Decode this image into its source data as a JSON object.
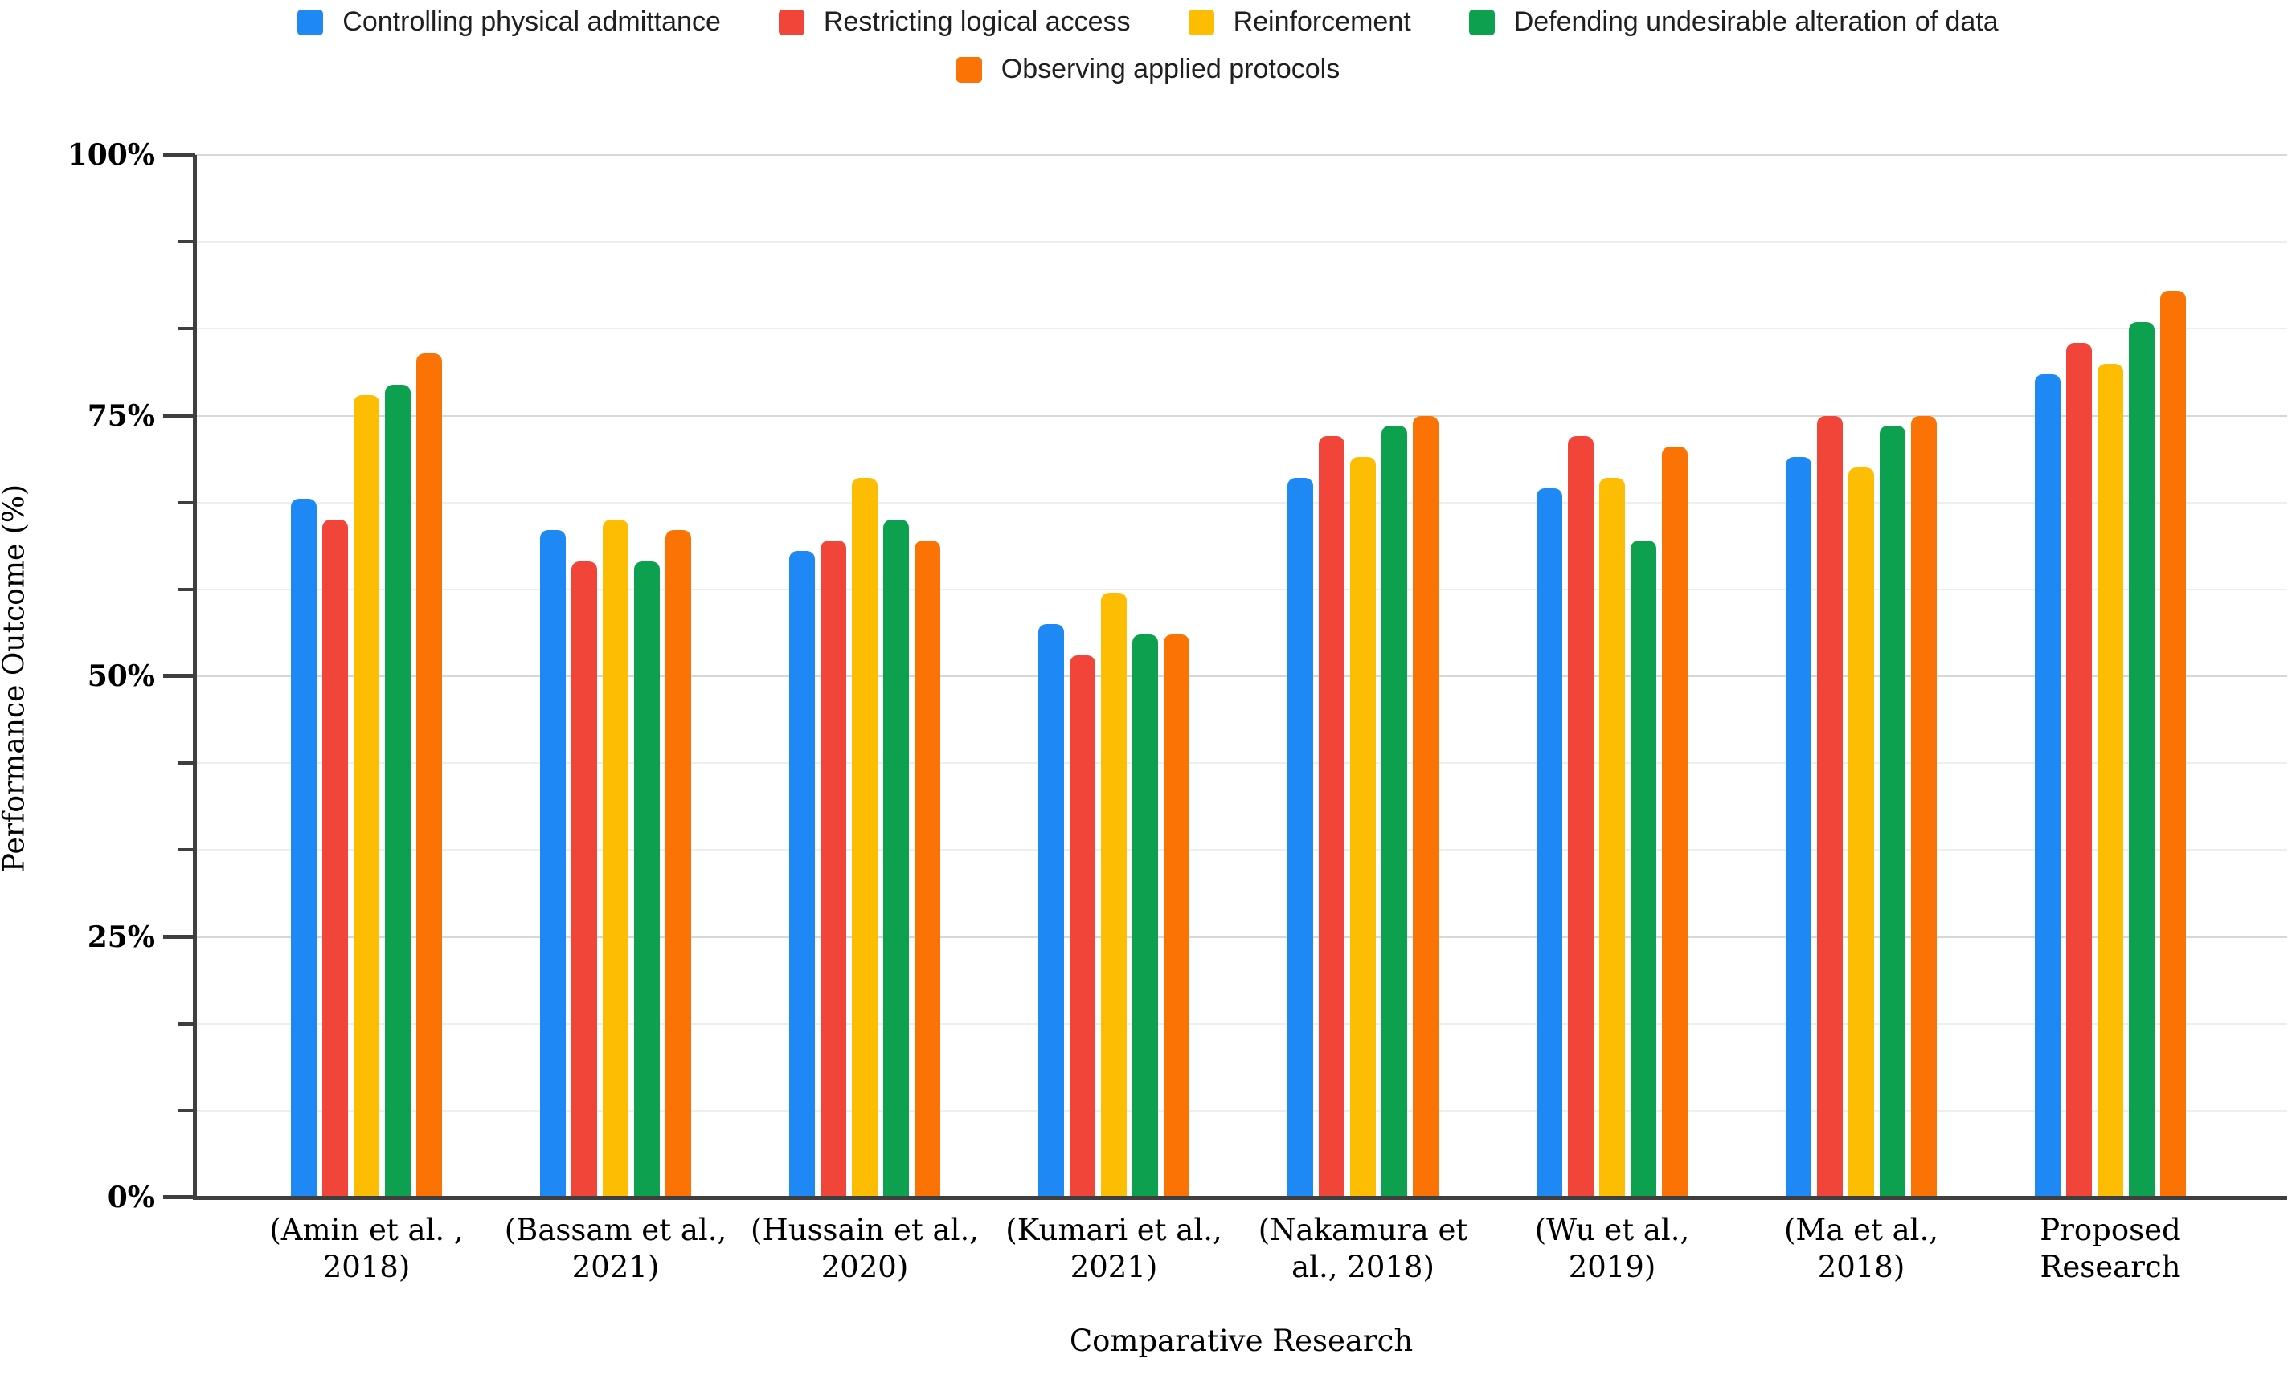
{
  "chart_data": {
    "type": "bar",
    "title": "",
    "xlabel": "Comparative Research",
    "ylabel": "Performance Outcome (%)",
    "ylim": [
      0,
      100
    ],
    "y_tick_values": [
      0,
      25,
      50,
      75,
      100
    ],
    "y_tick_labels": [
      "0%",
      "25%",
      "50%",
      "75%",
      "100%"
    ],
    "minor_gridline_step_pct": 8.333,
    "grid": "horizontal",
    "legend_position": "top",
    "categories": [
      "(Amin et al. , 2018)",
      "(Bassam et al., 2021)",
      "(Hussain et al., 2020)",
      "(Kumari et al., 2021)",
      "(Nakamura et al., 2018)",
      "(Wu et al., 2019)",
      "(Ma et al., 2018)",
      "Proposed Research"
    ],
    "category_lines": [
      [
        "(Amin et al. ,",
        "2018)"
      ],
      [
        "(Bassam et al.,",
        "2021)"
      ],
      [
        "(Hussain et al.,",
        "2020)"
      ],
      [
        "(Kumari et al.,",
        "2021)"
      ],
      [
        "(Nakamura et",
        "al., 2018)"
      ],
      [
        "(Wu et al.,",
        "2019)"
      ],
      [
        "(Ma et al.,",
        "2018)"
      ],
      [
        "Proposed",
        "Research"
      ]
    ],
    "series": [
      {
        "name": "Controlling physical admittance",
        "color": "#1e88f5",
        "values": [
          67,
          64,
          62,
          55,
          69,
          68,
          71,
          79
        ]
      },
      {
        "name": "Restricting logical access",
        "color": "#f1453a",
        "values": [
          65,
          61,
          63,
          52,
          73,
          73,
          75,
          82
        ]
      },
      {
        "name": "Reinforcement",
        "color": "#fcbd02",
        "values": [
          77,
          65,
          69,
          58,
          71,
          69,
          70,
          80
        ]
      },
      {
        "name": "Defending undesirable alteration of data",
        "color": "#0da14f",
        "values": [
          78,
          61,
          65,
          54,
          74,
          63,
          74,
          84
        ]
      },
      {
        "name": "Observing applied protocols",
        "color": "#fb7304",
        "values": [
          81,
          64,
          63,
          54,
          75,
          72,
          75,
          87
        ]
      }
    ],
    "legend_rows": [
      [
        0,
        1,
        2,
        3
      ],
      [
        4
      ]
    ]
  }
}
